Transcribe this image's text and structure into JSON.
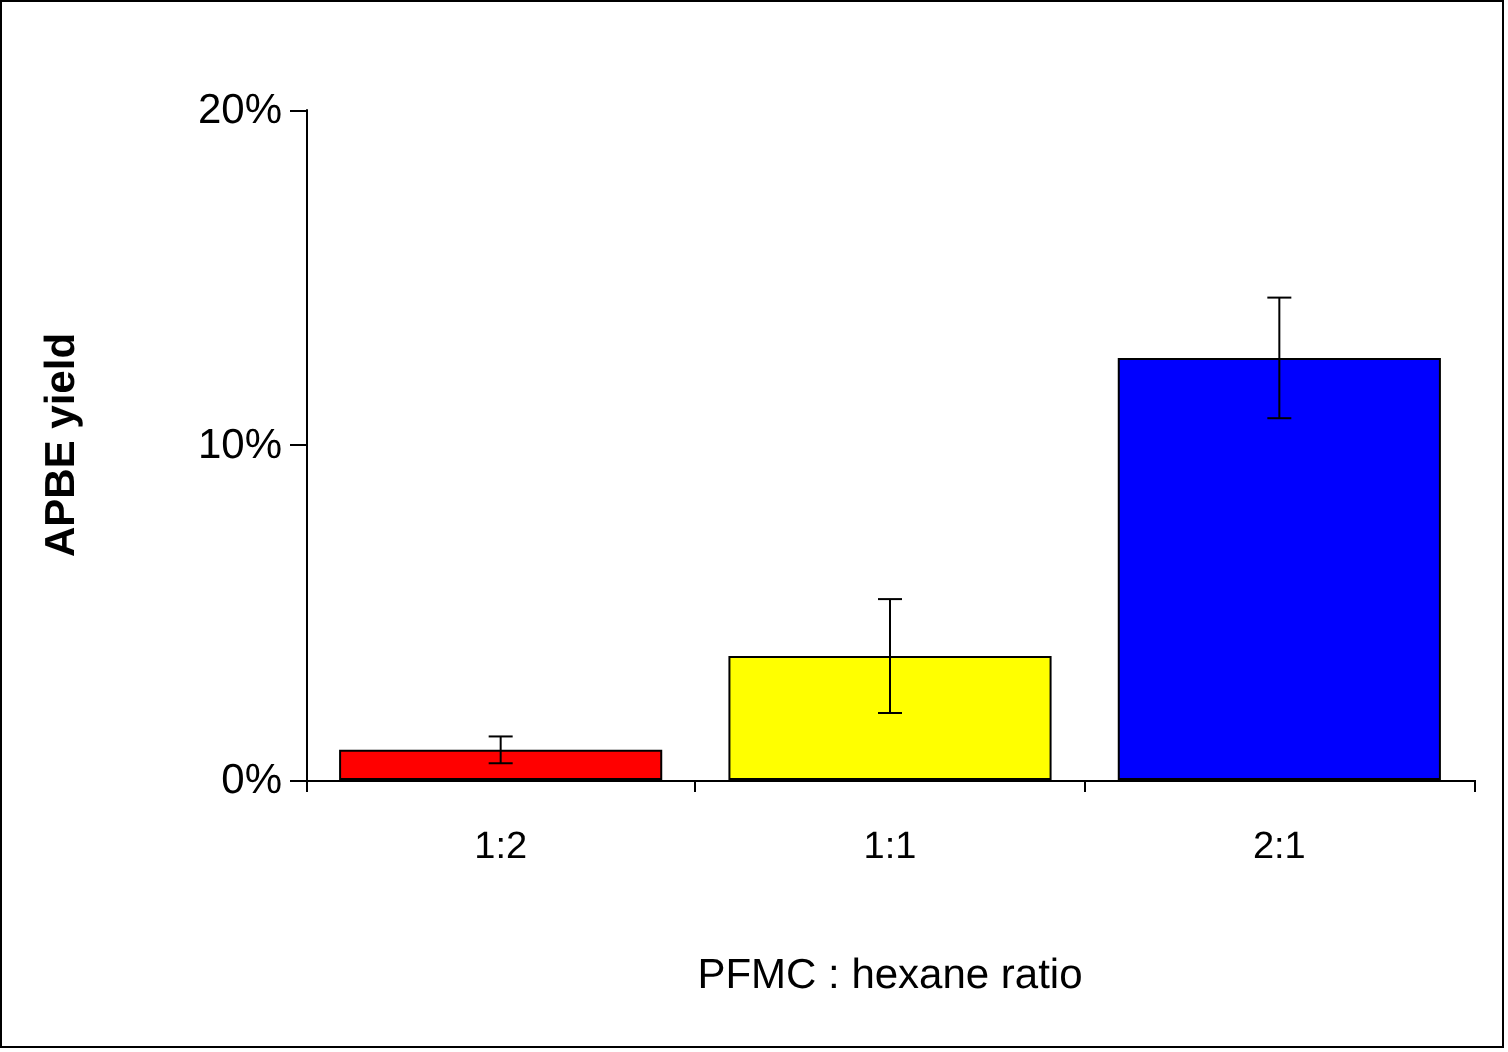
{
  "chart_data": {
    "type": "bar",
    "xlabel": "PFMC : hexane ratio",
    "ylabel": "APBE yield",
    "categories": [
      "1:2",
      "1:1",
      "2:1"
    ],
    "values": [
      0.9,
      3.7,
      12.6
    ],
    "colors": [
      "#ff0000",
      "#ffff00",
      "#0000ff"
    ],
    "errors": [
      0.4,
      1.7,
      1.8
    ],
    "ylim": [
      0,
      20
    ],
    "yticks": [
      {
        "value": 0,
        "label": "0%"
      },
      {
        "value": 10,
        "label": "10%"
      },
      {
        "value": 20,
        "label": "20%"
      }
    ],
    "grid": false
  }
}
